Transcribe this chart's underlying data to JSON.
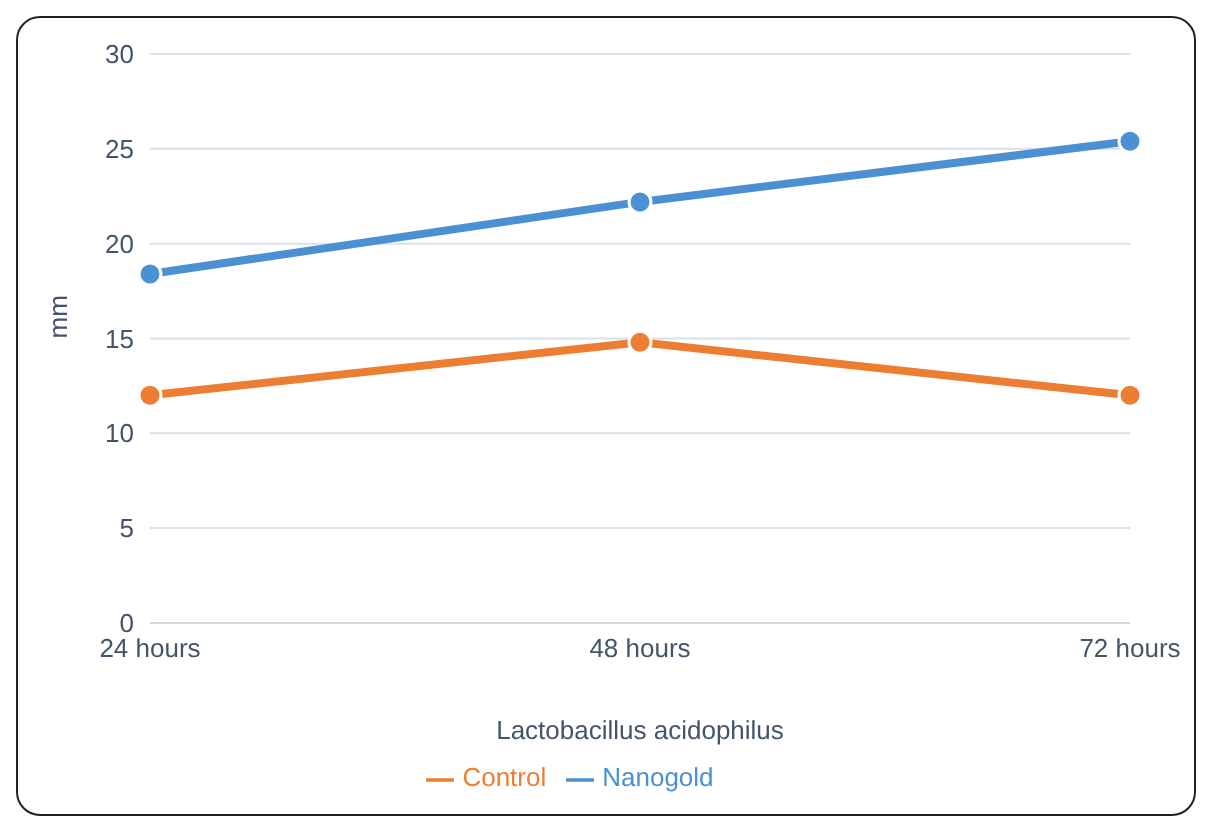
{
  "chart_data": {
    "type": "line",
    "xlabel": "Lactobacillus acidophilus",
    "ylabel": "mm",
    "categories": [
      "24 hours",
      "48 hours",
      "72 hours"
    ],
    "series": [
      {
        "name": "Nanogold",
        "color": "#4a90d2",
        "values": [
          18.4,
          22.2,
          25.4
        ]
      },
      {
        "name": "Control",
        "color": "#ed7d31",
        "values": [
          12,
          14.8,
          12
        ]
      }
    ],
    "ylim": [
      0,
      30
    ],
    "yticks": [
      0,
      5,
      10,
      15,
      20,
      25,
      30
    ],
    "grid": "y",
    "legend": "bottom",
    "marker": "circle",
    "line_style": "solid"
  }
}
